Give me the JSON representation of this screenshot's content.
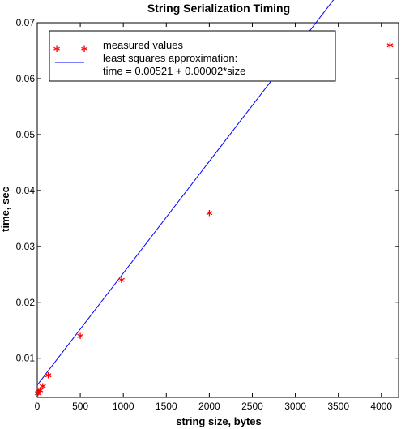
{
  "chart_data": {
    "type": "scatter",
    "title": "String Serialization Timing",
    "xlabel": "string size, bytes",
    "ylabel": "time, sec",
    "xlim": [
      0,
      4200
    ],
    "ylim": [
      0.003,
      0.07
    ],
    "xticks": [
      0,
      500,
      1000,
      1500,
      2000,
      2500,
      3000,
      3500,
      4000
    ],
    "yticks": [
      0.01,
      0.02,
      0.03,
      0.04,
      0.05,
      0.06,
      0.07
    ],
    "grid": false,
    "legend_position": "top-left",
    "series": [
      {
        "name": "measured values",
        "kind": "scatter",
        "marker": "*",
        "color": "#ff0000",
        "points": [
          {
            "x": 8,
            "y": 0.0038
          },
          {
            "x": 16,
            "y": 0.004
          },
          {
            "x": 32,
            "y": 0.0043
          },
          {
            "x": 64,
            "y": 0.005
          },
          {
            "x": 128,
            "y": 0.007
          },
          {
            "x": 500,
            "y": 0.014
          },
          {
            "x": 980,
            "y": 0.024
          },
          {
            "x": 2000,
            "y": 0.036
          },
          {
            "x": 4100,
            "y": 0.066
          }
        ]
      },
      {
        "name": "least squares approximation:",
        "name_line2": "time = 0.00521 + 0.00002*size",
        "kind": "line",
        "color": "#0000ff",
        "intercept": 0.00521,
        "slope": 2e-05,
        "x_range": [
          0,
          4100
        ]
      }
    ]
  }
}
